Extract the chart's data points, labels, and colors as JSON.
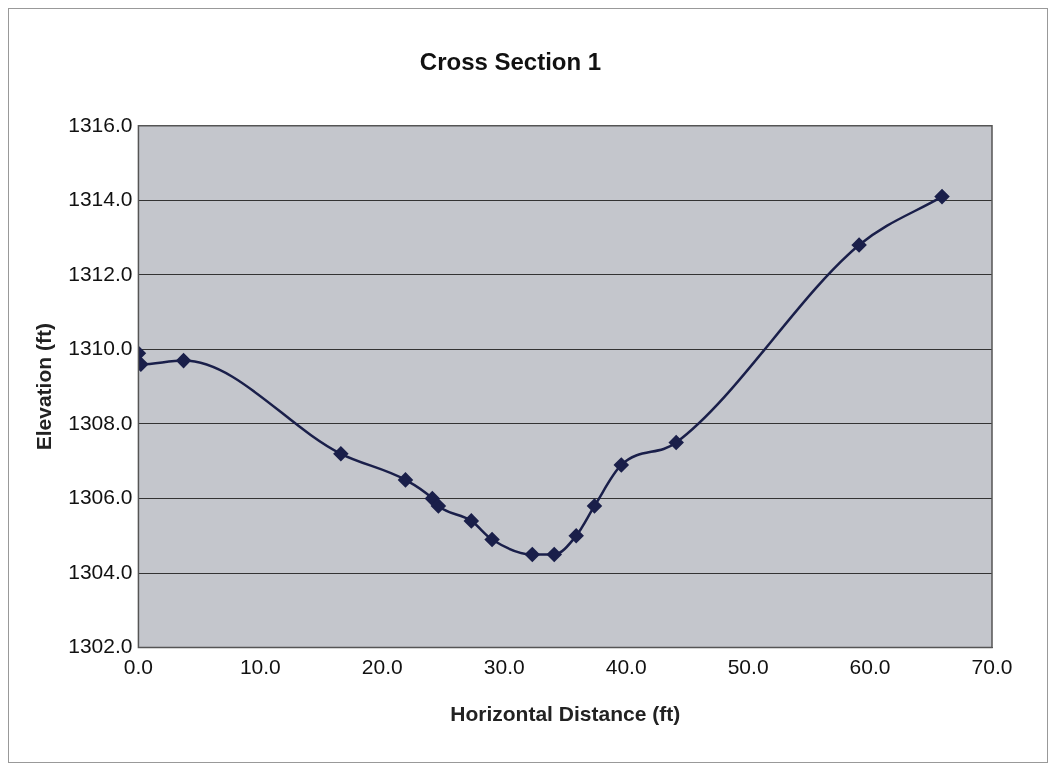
{
  "chart_data": {
    "type": "line",
    "title": "Cross Section 1",
    "xlabel": "Horizontal Distance (ft)",
    "ylabel": "Elevation (ft)",
    "x": [
      0,
      0.2,
      3.7,
      16.6,
      21.9,
      24.1,
      24.6,
      27.3,
      29.0,
      32.3,
      34.1,
      35.9,
      37.4,
      39.6,
      44.1,
      59.1,
      65.9
    ],
    "series": [
      {
        "color": "#1a1f4a",
        "values": [
          1309.9,
          1309.6,
          1309.7,
          1307.2,
          1306.5,
          1306.0,
          1305.8,
          1305.4,
          1304.9,
          1304.5,
          1304.5,
          1305.0,
          1305.8,
          1306.9,
          1307.5,
          1312.8,
          1314.1
        ]
      }
    ],
    "xlim": [
      0,
      70
    ],
    "xticks": [
      {
        "value": 0,
        "label": "0.0"
      },
      {
        "value": 10,
        "label": "10.0"
      },
      {
        "value": 20,
        "label": "20.0"
      },
      {
        "value": 30,
        "label": "30.0"
      },
      {
        "value": 40,
        "label": "40.0"
      },
      {
        "value": 50,
        "label": "50.0"
      },
      {
        "value": 60,
        "label": "60.0"
      },
      {
        "value": 70,
        "label": "70.0"
      }
    ],
    "ylim": [
      1302,
      1316
    ],
    "yticks": [
      {
        "value": 1302,
        "label": "1302.0"
      },
      {
        "value": 1304,
        "label": "1304.0"
      },
      {
        "value": 1306,
        "label": "1306.0"
      },
      {
        "value": 1308,
        "label": "1308.0"
      },
      {
        "value": 1310,
        "label": "1310.0"
      },
      {
        "value": 1312,
        "label": "1312.0"
      },
      {
        "value": 1314,
        "label": "1314.0"
      },
      {
        "value": 1316,
        "label": "1316.0"
      }
    ],
    "grid": "y",
    "legend": false,
    "marker": "diamond",
    "line_style": "solid"
  }
}
